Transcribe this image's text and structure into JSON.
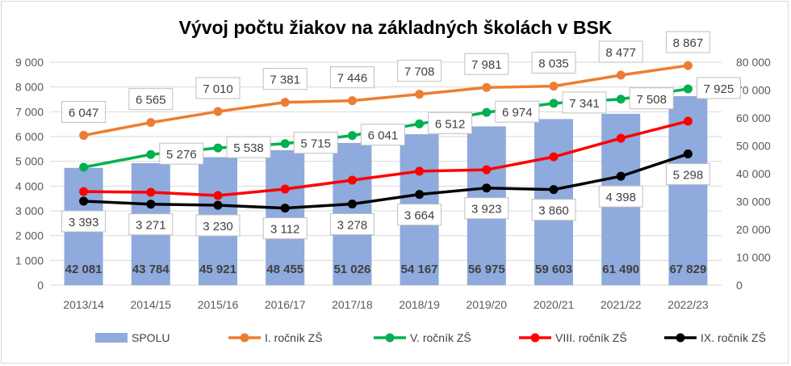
{
  "chart_data": {
    "type": "bar+line",
    "title": "Vývoj počtu žiakov na základných školách v BSK",
    "categories": [
      "2013/14",
      "2014/15",
      "2015/16",
      "2016/17",
      "2017/18",
      "2018/19",
      "2019/20",
      "2020/21",
      "2021/22",
      "2022/23"
    ],
    "y_left": {
      "range": [
        0,
        9000
      ],
      "ticks": [
        "0",
        "1 000",
        "2 000",
        "3 000",
        "4 000",
        "5 000",
        "6 000",
        "7 000",
        "8 000",
        "9 000"
      ]
    },
    "y_right": {
      "range": [
        0,
        80000
      ],
      "ticks": [
        "0",
        "10 000",
        "20 000",
        "30 000",
        "40 000",
        "50 000",
        "60 000",
        "70 000",
        "80 000"
      ]
    },
    "grid": true,
    "legend_position": "bottom",
    "series": [
      {
        "name": "SPOLU",
        "type": "bar",
        "axis": "right",
        "color": "#8faadc",
        "values": [
          42081,
          43784,
          45921,
          48455,
          51026,
          54167,
          56975,
          59603,
          61490,
          67829
        ],
        "labels": [
          "42 081",
          "43 784",
          "45 921",
          "48 455",
          "51 026",
          "54 167",
          "56 975",
          "59 603",
          "61 490",
          "67 829"
        ]
      },
      {
        "name": "I. ročník ZŠ",
        "type": "line",
        "axis": "left",
        "color": "#ed7d31",
        "values": [
          6047,
          6565,
          7010,
          7381,
          7446,
          7708,
          7981,
          8035,
          8477,
          8867
        ],
        "labels": [
          "6 047",
          "6 565",
          "7 010",
          "7 381",
          "7 446",
          "7 708",
          "7 981",
          "8 035",
          "8 477",
          "8 867"
        ]
      },
      {
        "name": "V. ročník ZŠ",
        "type": "line",
        "axis": "left",
        "color": "#00b050",
        "values": [
          4760,
          5276,
          5538,
          5715,
          6041,
          6512,
          6974,
          7341,
          7508,
          7925
        ],
        "labels": [
          "",
          "5 276",
          "5 538",
          "5 715",
          "6 041",
          "6 512",
          "6 974",
          "7 341",
          "7 508",
          "7 925"
        ]
      },
      {
        "name": "VIII. ročník ZŠ",
        "type": "line",
        "axis": "left",
        "color": "#ff0000",
        "values": [
          3780,
          3750,
          3620,
          3880,
          4240,
          4600,
          4660,
          5180,
          5930,
          6620
        ],
        "labels": []
      },
      {
        "name": "IX. ročník ZŠ",
        "type": "line",
        "axis": "left",
        "color": "#000000",
        "values": [
          3393,
          3271,
          3230,
          3112,
          3278,
          3664,
          3923,
          3860,
          4398,
          5298
        ],
        "labels": [
          "3 393",
          "3 271",
          "3 230",
          "3 112",
          "3 278",
          "3 664",
          "3 923",
          "3 860",
          "4 398",
          "5 298"
        ]
      }
    ]
  }
}
